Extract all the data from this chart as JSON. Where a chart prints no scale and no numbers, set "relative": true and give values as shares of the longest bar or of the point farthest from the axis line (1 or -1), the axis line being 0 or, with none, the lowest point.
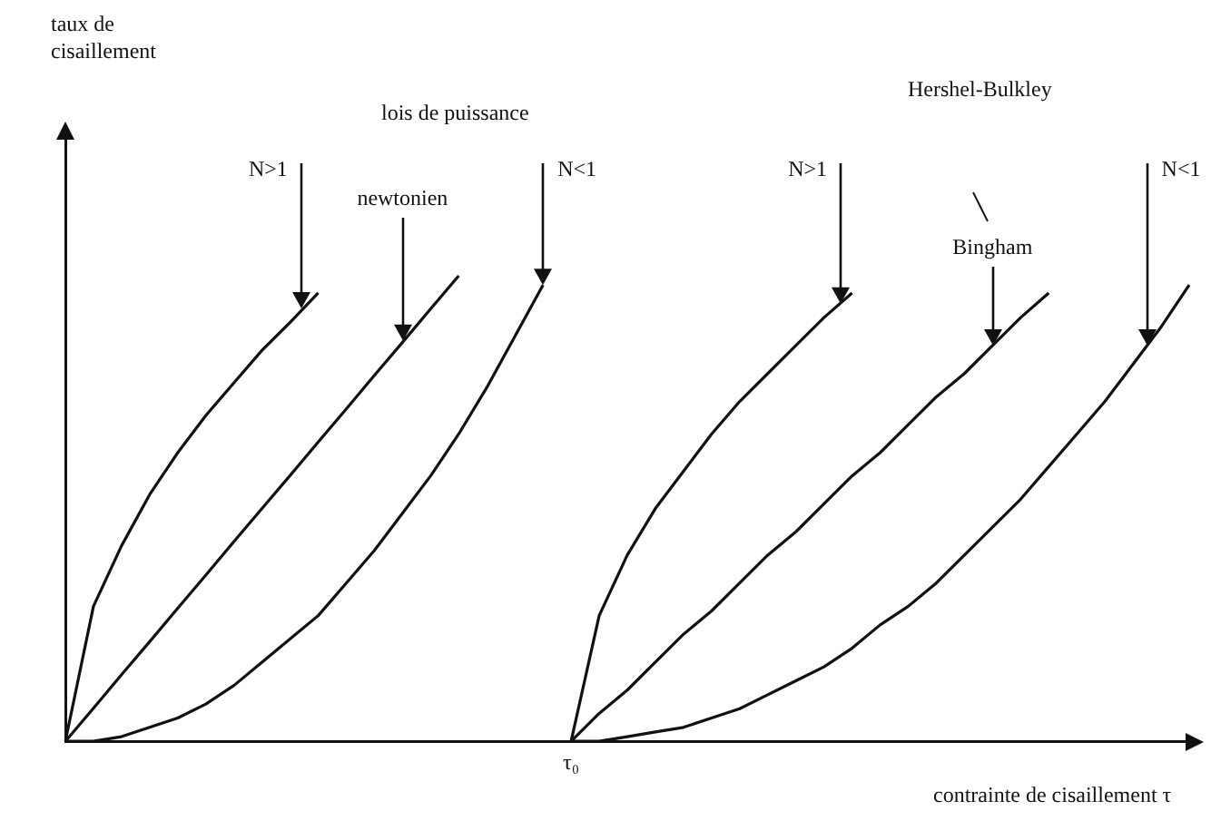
{
  "chart_data": {
    "type": "line",
    "relative": true,
    "categories": [
      null,
      null,
      null,
      null,
      null,
      null,
      null,
      null,
      null,
      null,
      null,
      null,
      null,
      null,
      null,
      null,
      null,
      null,
      null,
      null,
      null,
      null,
      null,
      null,
      null,
      null,
      null,
      null,
      null,
      null,
      null,
      null,
      null,
      null,
      null,
      null,
      null,
      null,
      null,
      null,
      null
    ],
    "xlabel": "contrainte de cisaillement τ",
    "grid": false,
    "legend": false,
    "marker": "none",
    "line_style": "solid",
    "series": [
      {
        "color": "#111111",
        "values": [
          0,
          0.29,
          0.42,
          0.53,
          0.62,
          0.7,
          0.77,
          0.84,
          0.9,
          0.963,
          null,
          null,
          null,
          null,
          null,
          null,
          null,
          null,
          null,
          null,
          null,
          null,
          null,
          null,
          null,
          null,
          null,
          null,
          null,
          null,
          null,
          null,
          null,
          null,
          null,
          null,
          null,
          null,
          null,
          null,
          null
        ]
      },
      {
        "color": "#111111",
        "values": [
          0,
          0.071,
          0.143,
          0.214,
          0.286,
          0.357,
          0.429,
          0.5,
          0.571,
          0.643,
          0.714,
          0.786,
          0.857,
          0.929,
          1,
          null,
          null,
          null,
          null,
          null,
          null,
          null,
          null,
          null,
          null,
          null,
          null,
          null,
          null,
          null,
          null,
          null,
          null,
          null,
          null,
          null,
          null,
          null,
          null,
          null,
          null
        ]
      },
      {
        "color": "#111111",
        "values": [
          0,
          0,
          0.01,
          0.03,
          0.05,
          0.08,
          0.12,
          0.17,
          0.22,
          0.27,
          0.34,
          0.41,
          0.49,
          0.57,
          0.66,
          0.76,
          0.87,
          0.98,
          null,
          null,
          null,
          null,
          null,
          null,
          null,
          null,
          null,
          null,
          null,
          null,
          null,
          null,
          null,
          null,
          null,
          null,
          null,
          null,
          null,
          null,
          null
        ]
      },
      {
        "color": "#111111",
        "values": [
          null,
          null,
          null,
          null,
          null,
          null,
          null,
          null,
          null,
          null,
          null,
          null,
          null,
          null,
          null,
          null,
          null,
          null,
          0,
          0.27,
          0.4,
          0.5,
          0.58,
          0.66,
          0.73,
          0.79,
          0.85,
          0.91,
          0.963,
          null,
          null,
          null,
          null,
          null,
          null,
          null,
          null,
          null,
          null,
          null,
          null
        ]
      },
      {
        "color": "#111111",
        "values": [
          null,
          null,
          null,
          null,
          null,
          null,
          null,
          null,
          null,
          null,
          null,
          null,
          null,
          null,
          null,
          null,
          null,
          null,
          0,
          0.06,
          0.11,
          0.17,
          0.23,
          0.28,
          0.34,
          0.4,
          0.45,
          0.51,
          0.57,
          0.62,
          0.68,
          0.74,
          0.79,
          0.85,
          0.91,
          0.963,
          null,
          null,
          null,
          null,
          null
        ]
      },
      {
        "color": "#111111",
        "values": [
          null,
          null,
          null,
          null,
          null,
          null,
          null,
          null,
          null,
          null,
          null,
          null,
          null,
          null,
          null,
          null,
          null,
          null,
          0,
          0,
          0.01,
          0.02,
          0.03,
          0.05,
          0.07,
          0.1,
          0.13,
          0.16,
          0.2,
          0.25,
          0.29,
          0.34,
          0.4,
          0.46,
          0.52,
          0.59,
          0.66,
          0.73,
          0.81,
          0.89,
          0.98
        ]
      }
    ],
    "annotations": [
      "N>1",
      "newtonien",
      "N<1",
      "lois de puissance",
      "N>1",
      "Bingham",
      "N<1",
      "Hershel-Bulkley",
      "τ₀",
      "taux de cisaillement"
    ]
  }
}
